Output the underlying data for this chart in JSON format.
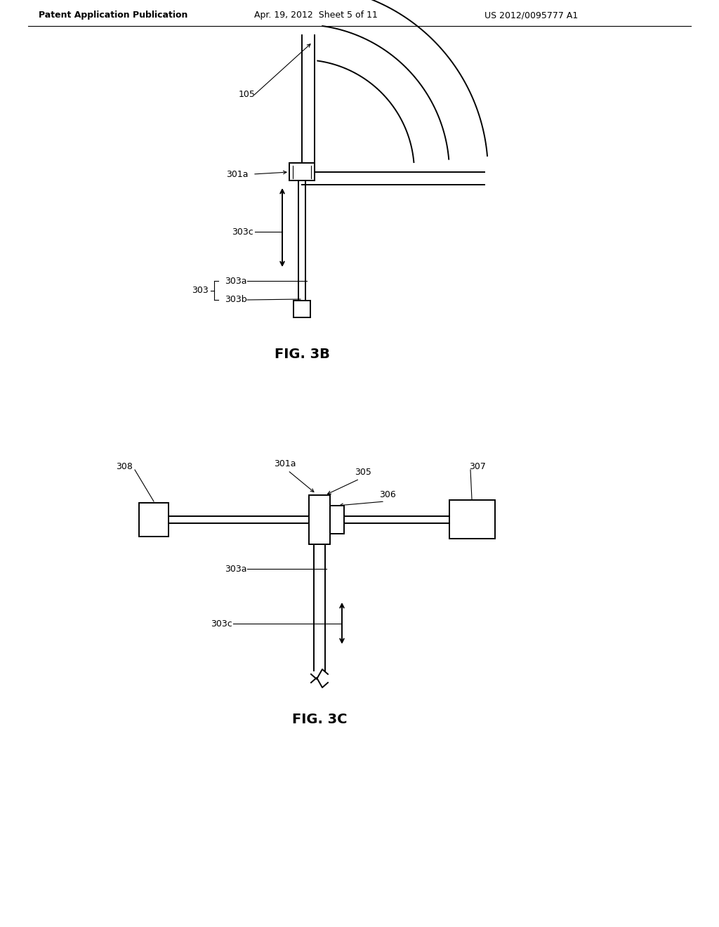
{
  "bg_color": "#ffffff",
  "line_color": "#000000",
  "header_left": "Patent Application Publication",
  "header_mid": "Apr. 19, 2012  Sheet 5 of 11",
  "header_right": "US 2012/0095777 A1",
  "fig3b_label": "FIG. 3B",
  "fig3c_label": "FIG. 3C",
  "font_size_header": 9,
  "font_size_ref": 9,
  "font_size_fig": 14
}
